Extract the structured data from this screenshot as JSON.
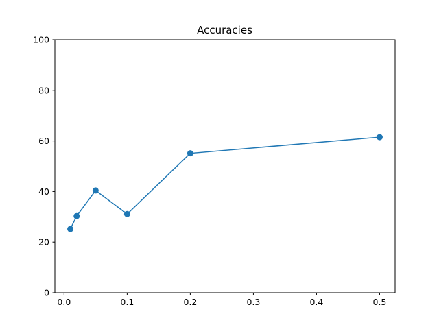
{
  "chart_data": {
    "type": "line",
    "title": "Accuracies",
    "xlabel": "",
    "ylabel": "",
    "xlim": [
      -0.0145,
      0.5245
    ],
    "ylim": [
      0,
      100
    ],
    "x_ticks": [
      0.0,
      0.1,
      0.2,
      0.3,
      0.4,
      0.5
    ],
    "x_tick_labels": [
      "0.0",
      "0.1",
      "0.2",
      "0.3",
      "0.4",
      "0.5"
    ],
    "y_ticks": [
      0,
      20,
      40,
      60,
      80,
      100
    ],
    "y_tick_labels": [
      "0",
      "20",
      "40",
      "60",
      "80",
      "100"
    ],
    "grid": false,
    "series": [
      {
        "color": "#1f77b4",
        "marker": "circle",
        "x": [
          0.01,
          0.02,
          0.05,
          0.1,
          0.2,
          0.5
        ],
        "y": [
          25.2,
          30.3,
          40.4,
          31.1,
          55.1,
          61.5
        ]
      }
    ]
  }
}
